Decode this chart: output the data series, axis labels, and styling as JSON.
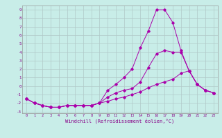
{
  "xlabel": "Windchill (Refroidissement éolien,°C)",
  "xlim": [
    -0.5,
    23.5
  ],
  "ylim": [
    -3.2,
    9.5
  ],
  "xticks": [
    0,
    1,
    2,
    3,
    4,
    5,
    6,
    7,
    8,
    9,
    10,
    11,
    12,
    13,
    14,
    15,
    16,
    17,
    18,
    19,
    20,
    21,
    22,
    23
  ],
  "yticks": [
    -3,
    -2,
    -1,
    0,
    1,
    2,
    3,
    4,
    5,
    6,
    7,
    8,
    9
  ],
  "bg_color": "#c8ede8",
  "grid_color": "#b0c8c8",
  "line_color": "#aa00aa",
  "line1_x": [
    0,
    1,
    2,
    3,
    4,
    5,
    6,
    7,
    8,
    9,
    10,
    11,
    12,
    13,
    14,
    15,
    16,
    17,
    18,
    19,
    20,
    21,
    22,
    23
  ],
  "line1_y": [
    -1.5,
    -2.0,
    -2.3,
    -2.5,
    -2.5,
    -2.3,
    -2.3,
    -2.3,
    -2.3,
    -2.0,
    -0.5,
    0.2,
    1.0,
    2.0,
    4.5,
    6.5,
    9.0,
    9.0,
    7.5,
    4.2,
    1.8,
    0.2,
    -0.5,
    -0.8
  ],
  "line2_x": [
    0,
    1,
    2,
    3,
    4,
    5,
    6,
    7,
    8,
    9,
    10,
    11,
    12,
    13,
    14,
    15,
    16,
    17,
    18,
    19,
    20,
    21,
    22,
    23
  ],
  "line2_y": [
    -1.5,
    -2.0,
    -2.3,
    -2.5,
    -2.5,
    -2.3,
    -2.3,
    -2.3,
    -2.3,
    -2.0,
    -1.3,
    -0.8,
    -0.5,
    -0.3,
    0.5,
    2.2,
    3.8,
    4.2,
    4.0,
    4.0,
    1.8,
    0.2,
    -0.5,
    -0.8
  ],
  "line3_x": [
    0,
    1,
    2,
    3,
    4,
    5,
    6,
    7,
    8,
    9,
    10,
    11,
    12,
    13,
    14,
    15,
    16,
    17,
    18,
    19,
    20,
    21,
    22,
    23
  ],
  "line3_y": [
    -1.5,
    -2.0,
    -2.3,
    -2.5,
    -2.5,
    -2.3,
    -2.3,
    -2.3,
    -2.3,
    -2.0,
    -1.8,
    -1.5,
    -1.3,
    -1.0,
    -0.7,
    -0.2,
    0.2,
    0.5,
    0.8,
    1.5,
    1.8,
    0.2,
    -0.5,
    -0.8
  ]
}
